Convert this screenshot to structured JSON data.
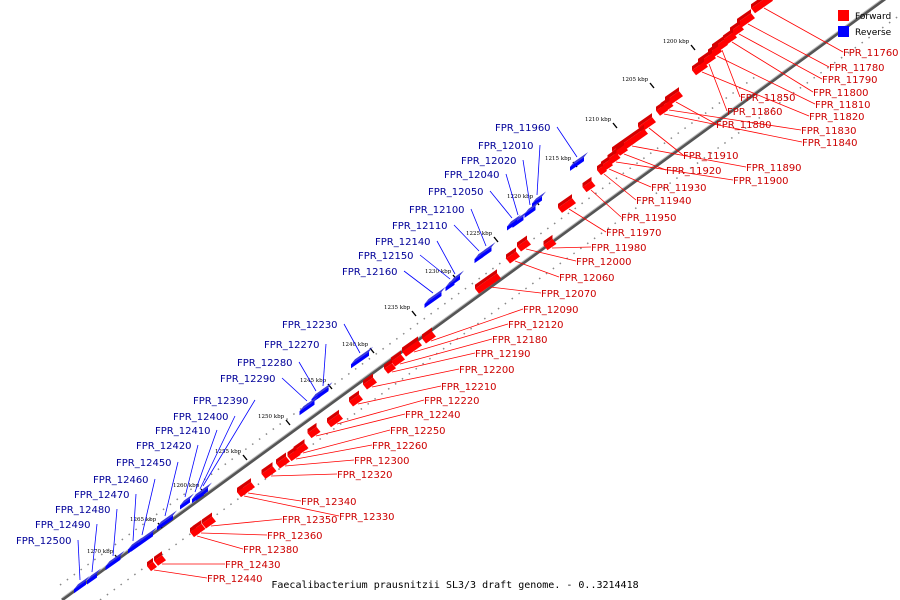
{
  "caption": "Faecalibacterium prausnitzii SL3/3 draft genome. - 0..3214418",
  "legend": [
    {
      "label": "Forward",
      "color": "#ff0000"
    },
    {
      "label": "Reverse",
      "color": "#0000ff"
    }
  ],
  "colors": {
    "forward": "#ff0000",
    "reverse": "#0000ff",
    "forward_label": "#cc0000",
    "reverse_label": "#000099"
  },
  "kbp_ticks": [
    "1200 kbp",
    "1205 kbp",
    "1210 kbp",
    "1215 kbp",
    "1220 kbp",
    "1225 kbp",
    "1230 kbp",
    "1235 kbp",
    "1240 kbp",
    "1245 kbp",
    "1250 kbp",
    "1255 kbp",
    "1260 kbp",
    "1265 kbp",
    "1270 kbp"
  ],
  "reverse_genes": [
    "FPR_11960",
    "FPR_12010",
    "FPR_12020",
    "FPR_12040",
    "FPR_12050",
    "FPR_12100",
    "FPR_12110",
    "FPR_12140",
    "FPR_12150",
    "FPR_12160",
    "FPR_12230",
    "FPR_12270",
    "FPR_12280",
    "FPR_12290",
    "FPR_12390",
    "FPR_12400",
    "FPR_12410",
    "FPR_12420",
    "FPR_12450",
    "FPR_12460",
    "FPR_12470",
    "FPR_12480",
    "FPR_12490",
    "FPR_12500"
  ],
  "forward_genes": [
    "FPR_11760",
    "FPR_11780",
    "FPR_11790",
    "FPR_11800",
    "FPR_11850",
    "FPR_11810",
    "FPR_11860",
    "FPR_11820",
    "FPR_11880",
    "FPR_11830",
    "FPR_11840",
    "FPR_11910",
    "FPR_11890",
    "FPR_11920",
    "FPR_11900",
    "FPR_11930",
    "FPR_11940",
    "FPR_11950",
    "FPR_11970",
    "FPR_11980",
    "FPR_12000",
    "FPR_12060",
    "FPR_12070",
    "FPR_12090",
    "FPR_12120",
    "FPR_12180",
    "FPR_12190",
    "FPR_12200",
    "FPR_12210",
    "FPR_12220",
    "FPR_12240",
    "FPR_12250",
    "FPR_12260",
    "FPR_12300",
    "FPR_12320",
    "FPR_12340",
    "FPR_12330",
    "FPR_12350",
    "FPR_12360",
    "FPR_12380",
    "FPR_12430",
    "FPR_12440"
  ]
}
